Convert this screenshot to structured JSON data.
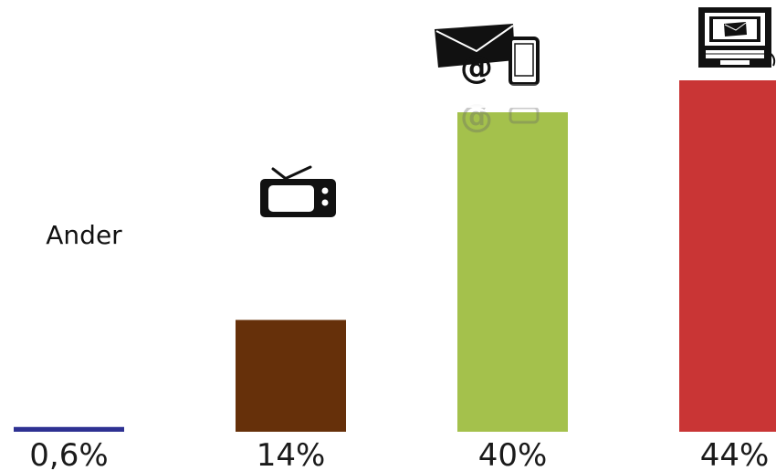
{
  "chart_data": {
    "type": "bar",
    "categories": [
      "Ander",
      "",
      "",
      ""
    ],
    "values": [
      0.6,
      14,
      40,
      44
    ],
    "value_labels": [
      "0,6%",
      "14%",
      "40%",
      "44%"
    ],
    "colors": [
      "#2e3192",
      "#66300a",
      "#a4c14c",
      "#c93535"
    ],
    "icons": [
      "",
      "tv-icon",
      "email-phone-icon",
      "computer-icon"
    ],
    "ylim": [
      0,
      44
    ],
    "grid": false,
    "title": "",
    "xlabel": "",
    "ylabel": ""
  }
}
